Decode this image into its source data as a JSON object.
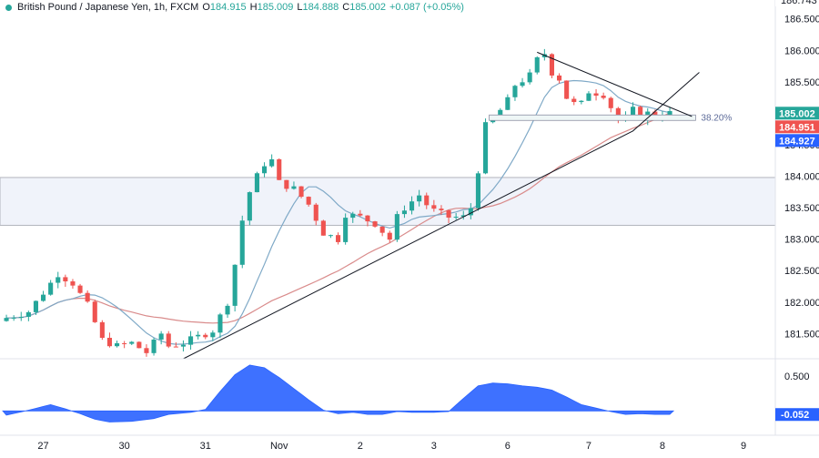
{
  "header": {
    "symbol": "British Pound / Japanese Yen, 1h, FXCM",
    "o_label": "O",
    "open": "184.915",
    "h_label": "H",
    "high": "185.009",
    "l_label": "L",
    "low": "184.888",
    "c_label": "C",
    "close": "185.002",
    "change": "+0.087 (+0.05%)"
  },
  "colors": {
    "up": "#26a69a",
    "down": "#ef5350",
    "ma_fast": "#7fa9c7",
    "ma_slow": "#d98b8b",
    "oscillator": "#2962ff",
    "zone_fill": "#f0f3fa",
    "zone_border": "#b2b5be",
    "price_badge_green": "#26a69a",
    "price_badge_red": "#ef5350",
    "price_badge_blue": "#2962ff",
    "fib_line": "#8c8fa3"
  },
  "chart_data": [
    {
      "type": "candlestick",
      "title": "British Pound / Japanese Yen, 1h, FXCM",
      "ylim": [
        181.1,
        186.8
      ],
      "y_ticks": [
        "186.500",
        "186.000",
        "185.500",
        "185.000",
        "184.500",
        "184.000",
        "183.500",
        "183.000",
        "182.500",
        "182.000",
        "181.500"
      ],
      "top_partial_label": "186.743",
      "x_ticks": [
        {
          "label": "27",
          "bar": 5
        },
        {
          "label": "30",
          "bar": 16
        },
        {
          "label": "31",
          "bar": 27
        },
        {
          "label": "Nov",
          "bar": 37
        },
        {
          "label": "2",
          "bar": 48
        },
        {
          "label": "3",
          "bar": 58
        },
        {
          "label": "6",
          "bar": 68
        },
        {
          "label": "7",
          "bar": 79
        },
        {
          "label": "8",
          "bar": 89
        },
        {
          "label": "9",
          "bar": 100
        }
      ],
      "anchors": [
        [
          0,
          181.75
        ],
        [
          3,
          181.85
        ],
        [
          6,
          182.3
        ],
        [
          7,
          182.45
        ],
        [
          9,
          182.3
        ],
        [
          11,
          181.95
        ],
        [
          13,
          181.4
        ],
        [
          15,
          181.3
        ],
        [
          17,
          181.35
        ],
        [
          19,
          181.2
        ],
        [
          21,
          181.5
        ],
        [
          22,
          181.3
        ],
        [
          24,
          181.35
        ],
        [
          26,
          181.45
        ],
        [
          28,
          181.55
        ],
        [
          30,
          182.0
        ],
        [
          31,
          182.6
        ],
        [
          32,
          183.3
        ],
        [
          33,
          183.75
        ],
        [
          34,
          184.0
        ],
        [
          35,
          184.2
        ],
        [
          36,
          184.25
        ],
        [
          37,
          183.9
        ],
        [
          39,
          183.8
        ],
        [
          41,
          183.55
        ],
        [
          43,
          183.1
        ],
        [
          45,
          183.0
        ],
        [
          46,
          183.4
        ],
        [
          48,
          183.35
        ],
        [
          50,
          183.25
        ],
        [
          52,
          183.0
        ],
        [
          53,
          183.35
        ],
        [
          54,
          183.5
        ],
        [
          56,
          183.7
        ],
        [
          57,
          183.55
        ],
        [
          58,
          183.45
        ],
        [
          60,
          183.35
        ],
        [
          62,
          183.35
        ],
        [
          63,
          183.5
        ],
        [
          64,
          184.1
        ],
        [
          65,
          184.8
        ],
        [
          66,
          184.9
        ],
        [
          67,
          185.05
        ],
        [
          68,
          185.2
        ],
        [
          69,
          185.45
        ],
        [
          71,
          185.6
        ],
        [
          72,
          185.85
        ],
        [
          73,
          185.95
        ],
        [
          74,
          185.65
        ],
        [
          75,
          185.55
        ],
        [
          76,
          185.25
        ],
        [
          77,
          185.15
        ],
        [
          78,
          185.15
        ],
        [
          79,
          185.35
        ],
        [
          81,
          185.3
        ],
        [
          82,
          185.1
        ],
        [
          83,
          184.9
        ],
        [
          84,
          184.9
        ],
        [
          85,
          185.05
        ],
        [
          86,
          184.95
        ],
        [
          87,
          185.0
        ],
        [
          88,
          184.95
        ],
        [
          89,
          184.99
        ],
        [
          90,
          185.0
        ]
      ],
      "ma_fast_period": 10,
      "ma_slow_period": 30,
      "resistance_zone": [
        183.22,
        183.98
      ],
      "fib_level": {
        "label": "38.20%",
        "value": 184.93
      },
      "trendline_support": [
        [
          24,
          181.1
        ],
        [
          85,
          184.72
        ],
        [
          94,
          185.65
        ]
      ],
      "trendline_resistance": [
        [
          72,
          185.97
        ],
        [
          93,
          184.95
        ]
      ],
      "price_badges": [
        {
          "text": "185.002",
          "value": 185.002,
          "kind": "green"
        },
        {
          "text": "184.951",
          "value": 184.951,
          "kind": "red"
        },
        {
          "text": "184.927",
          "value": 184.927,
          "kind": "blue"
        }
      ]
    },
    {
      "type": "area",
      "name": "oscillator",
      "ylim": [
        -0.35,
        0.75
      ],
      "y_ticks": [
        "0.500"
      ],
      "current_label": "-0.052",
      "anchors": [
        [
          0,
          -0.06
        ],
        [
          3,
          0.01
        ],
        [
          6,
          0.09
        ],
        [
          8,
          0.03
        ],
        [
          10,
          -0.04
        ],
        [
          12,
          -0.12
        ],
        [
          14,
          -0.16
        ],
        [
          17,
          -0.15
        ],
        [
          20,
          -0.11
        ],
        [
          22,
          -0.05
        ],
        [
          25,
          -0.02
        ],
        [
          27,
          0.02
        ],
        [
          29,
          0.28
        ],
        [
          31,
          0.52
        ],
        [
          33,
          0.66
        ],
        [
          35,
          0.62
        ],
        [
          37,
          0.48
        ],
        [
          39,
          0.32
        ],
        [
          41,
          0.16
        ],
        [
          43,
          0.01
        ],
        [
          45,
          -0.04
        ],
        [
          47,
          -0.02
        ],
        [
          49,
          -0.05
        ],
        [
          51,
          -0.05
        ],
        [
          53,
          -0.01
        ],
        [
          55,
          -0.02
        ],
        [
          58,
          -0.02
        ],
        [
          60,
          -0.01
        ],
        [
          62,
          0.18
        ],
        [
          64,
          0.36
        ],
        [
          66,
          0.4
        ],
        [
          68,
          0.39
        ],
        [
          70,
          0.36
        ],
        [
          72,
          0.34
        ],
        [
          74,
          0.3
        ],
        [
          76,
          0.2
        ],
        [
          78,
          0.09
        ],
        [
          80,
          0.04
        ],
        [
          82,
          -0.01
        ],
        [
          84,
          -0.05
        ],
        [
          86,
          -0.04
        ],
        [
          88,
          -0.05
        ],
        [
          90,
          -0.05
        ]
      ]
    }
  ]
}
